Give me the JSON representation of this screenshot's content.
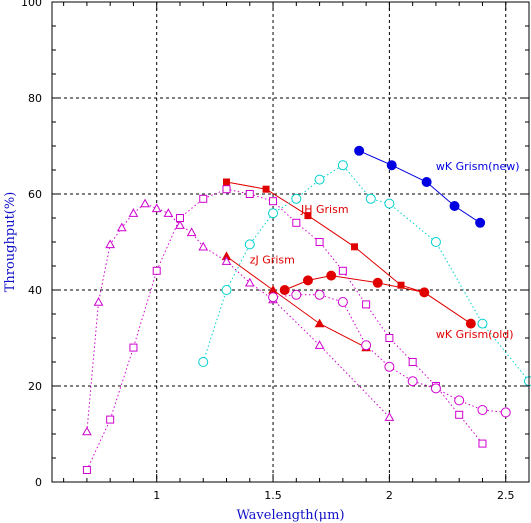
{
  "chart_data": {
    "type": "scatter",
    "xlabel": "Wavelength(μm)",
    "ylabel": "Throughput(%)",
    "xlim": [
      0.55,
      2.6
    ],
    "ylim": [
      0,
      100
    ],
    "xticks": [
      1,
      1.5,
      2,
      2.5
    ],
    "xtick_labels": [
      "1",
      "1.5",
      "2",
      "2.5"
    ],
    "yticks": [
      0,
      20,
      40,
      60,
      80,
      100
    ],
    "ytick_labels": [
      "0",
      "20",
      "40",
      "60",
      "80",
      "100"
    ],
    "grid": true,
    "series": [
      {
        "name": "JH Grism",
        "color": "#e00000",
        "marker": "filled-square",
        "line": "solid",
        "label_at": [
          1.62,
          56
        ],
        "x": [
          1.3,
          1.47,
          1.65,
          1.85,
          2.05,
          2.15
        ],
        "y": [
          62.5,
          61,
          55.5,
          49,
          41,
          39.5
        ]
      },
      {
        "name": "zJ Grism",
        "color": "#e00000",
        "marker": "filled-triangle",
        "line": "solid",
        "label_at": [
          1.4,
          45.5
        ],
        "x": [
          1.3,
          1.5,
          1.7,
          1.9
        ],
        "y": [
          47,
          40,
          33,
          28
        ]
      },
      {
        "name": "wK Grism(old)",
        "color": "#e00000",
        "marker": "filled-circle",
        "line": "solid",
        "label_at": [
          2.2,
          30
        ],
        "x": [
          1.55,
          1.65,
          1.75,
          1.95,
          2.15,
          2.35
        ],
        "y": [
          40,
          42,
          43,
          41.5,
          39.5,
          33
        ]
      },
      {
        "name": "wK Grism(new)",
        "color": "#0000e0",
        "marker": "filled-circle",
        "line": "solid",
        "label_at": [
          2.2,
          65
        ],
        "x": [
          1.87,
          2.01,
          2.16,
          2.28,
          2.39
        ],
        "y": [
          69,
          66,
          62.5,
          57.5,
          54
        ]
      },
      {
        "name": "",
        "color": "#00d0d0",
        "marker": "open-circle",
        "line": "dotted",
        "x": [
          1.2,
          1.3,
          1.4,
          1.5,
          1.6,
          1.7,
          1.8,
          1.92,
          2.0,
          2.2,
          2.4,
          2.6
        ],
        "y": [
          25,
          40,
          49.5,
          56,
          59,
          63,
          66,
          59,
          58,
          50,
          33,
          21
        ]
      },
      {
        "name": "",
        "color": "#d000d0",
        "marker": "open-triangle",
        "line": "dotted",
        "x": [
          0.7,
          0.75,
          0.8,
          0.85,
          0.9,
          0.95,
          1.0,
          1.05,
          1.1,
          1.15,
          1.2,
          1.3,
          1.4,
          1.5,
          1.7,
          2.0
        ],
        "y": [
          10.5,
          37.5,
          49.5,
          53,
          56,
          58,
          57,
          56,
          53.5,
          52,
          49,
          46,
          41.5,
          38,
          28.5,
          13.5
        ]
      },
      {
        "name": "",
        "color": "#d000d0",
        "marker": "open-square",
        "line": "dotted",
        "x": [
          0.7,
          0.8,
          0.9,
          1.0,
          1.1,
          1.2,
          1.3,
          1.4,
          1.5,
          1.6,
          1.7,
          1.8,
          1.9,
          2.0,
          2.1,
          2.2,
          2.3,
          2.4
        ],
        "y": [
          2.5,
          13,
          28,
          44,
          55,
          59,
          61,
          60,
          58.5,
          54,
          50,
          44,
          37,
          30,
          25,
          20,
          14,
          8
        ]
      },
      {
        "name": "",
        "color": "#d000d0",
        "marker": "open-circle",
        "line": "dotted",
        "x": [
          1.5,
          1.6,
          1.7,
          1.8,
          1.9,
          2.0,
          2.1,
          2.2,
          2.3,
          2.4,
          2.5
        ],
        "y": [
          38.5,
          39,
          39,
          37.5,
          28.5,
          24,
          21,
          19.5,
          17,
          15,
          14.5
        ]
      }
    ]
  }
}
